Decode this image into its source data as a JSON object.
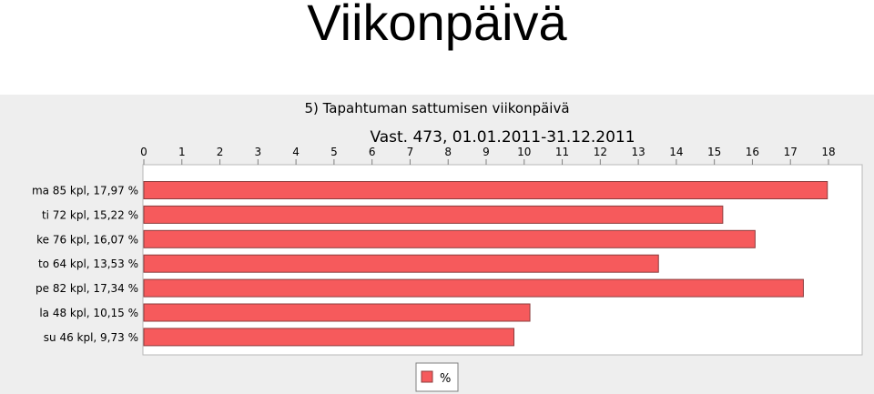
{
  "slide": {
    "title": "Viikonpäivä"
  },
  "chart_data": {
    "type": "bar",
    "orientation": "horizontal",
    "title": "5) Tapahtuman sattumisen viikonpäivä",
    "subtitle": "Vast. 473, 01.01.2011-31.12.2011",
    "xlim": [
      0,
      18
    ],
    "xticks": [
      0,
      1,
      2,
      3,
      4,
      5,
      6,
      7,
      8,
      9,
      10,
      11,
      12,
      13,
      14,
      15,
      16,
      17,
      18
    ],
    "xaxis_position": "top",
    "categories": [
      "ma 85 kpl, 17,97 %",
      "ti 72 kpl, 15,22 %",
      "ke 76 kpl, 16,07 %",
      "to 64 kpl, 13,53 %",
      "pe 82 kpl, 17,34 %",
      "la 48 kpl, 10,15 %",
      "su 46 kpl, 9,73 %"
    ],
    "series": [
      {
        "name": "%",
        "values": [
          17.97,
          15.22,
          16.07,
          13.53,
          17.34,
          10.15,
          9.73
        ]
      }
    ],
    "legend_position": "bottom",
    "grid": false,
    "colors": {
      "bar": "#f65a5c",
      "bar_border": "#8c3d3e",
      "panel": "#eeeeee",
      "plot": "#ffffff"
    }
  }
}
